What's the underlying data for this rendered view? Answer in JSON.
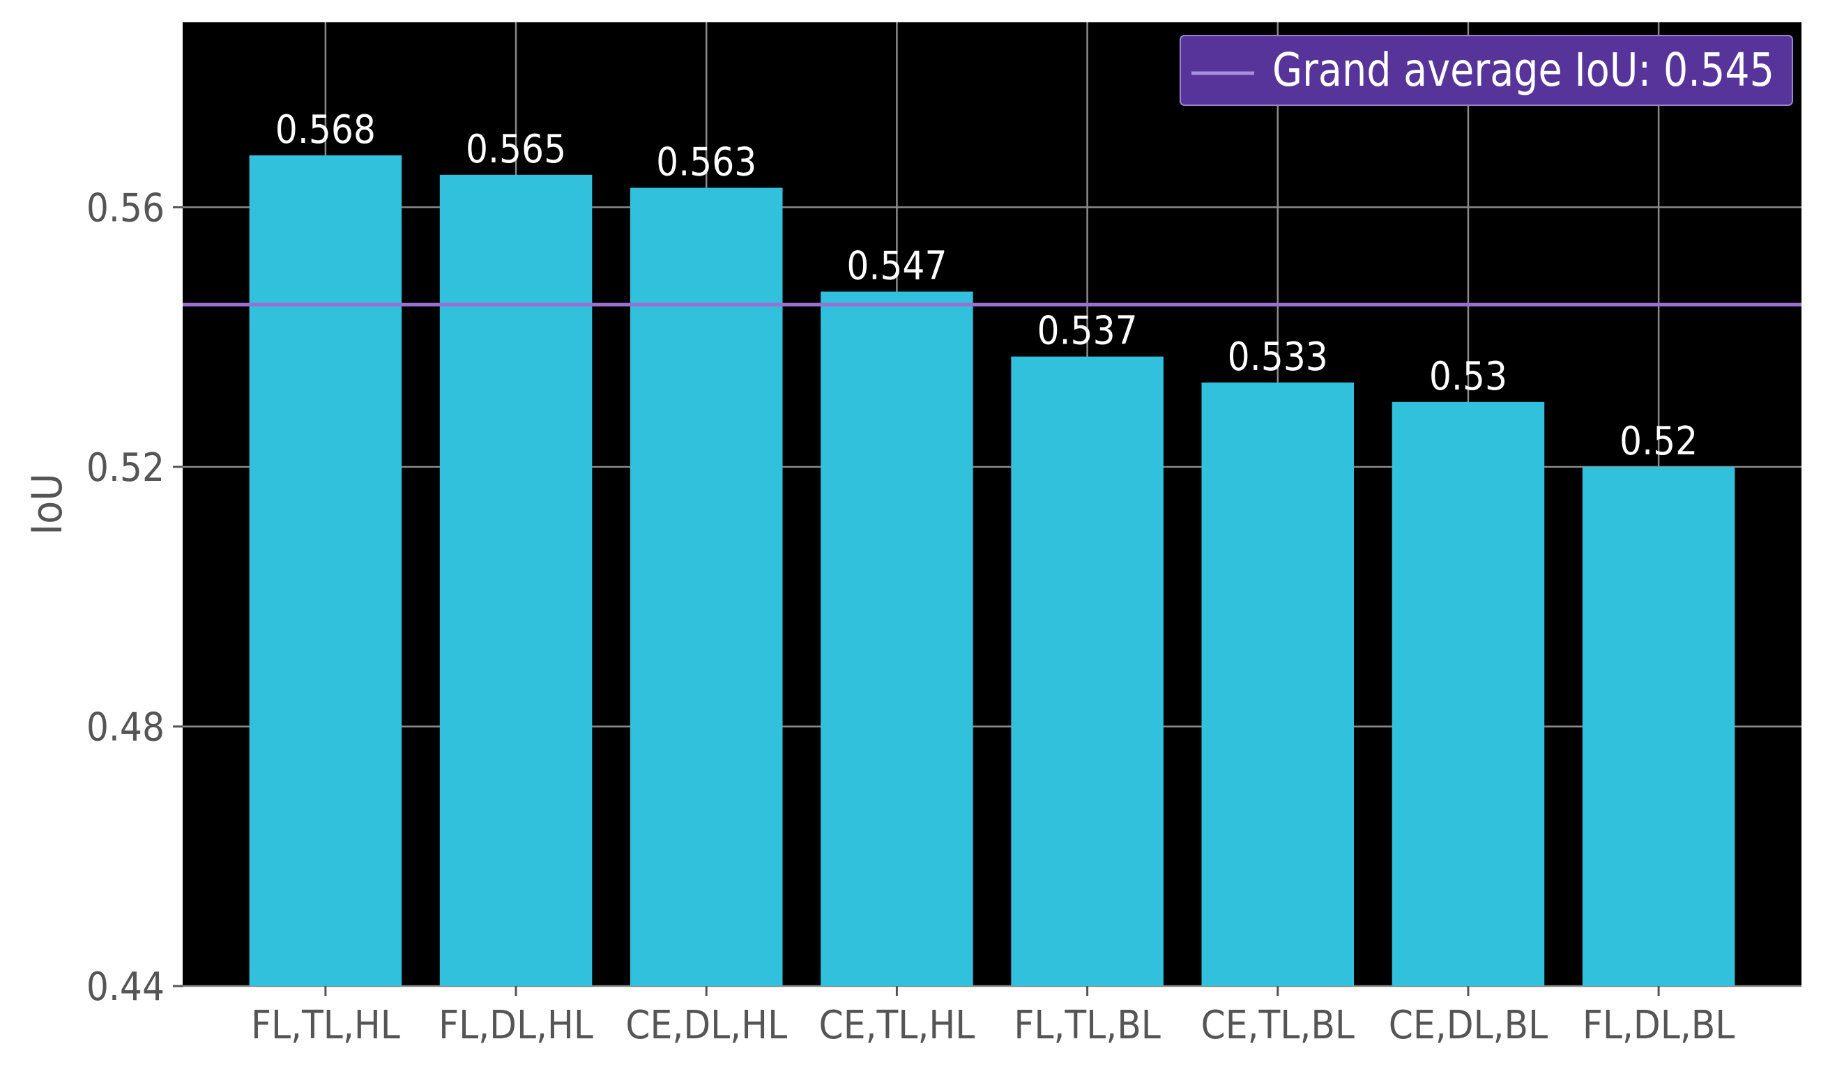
{
  "chart_data": {
    "type": "bar",
    "title": "",
    "xlabel": "",
    "ylabel": "IoU",
    "categories": [
      "FL,TL,HL",
      "FL,DL,HL",
      "CE,DL,HL",
      "CE,TL,HL",
      "FL,TL,BL",
      "CE,TL,BL",
      "CE,DL,BL",
      "FL,DL,BL"
    ],
    "values": [
      0.568,
      0.565,
      0.563,
      0.547,
      0.537,
      0.533,
      0.53,
      0.52
    ],
    "bar_labels": [
      "0.568",
      "0.565",
      "0.563",
      "0.547",
      "0.537",
      "0.533",
      "0.53",
      "0.52"
    ],
    "ylim": [
      0.44,
      0.5885
    ],
    "yticks": [
      0.44,
      0.48,
      0.52,
      0.56
    ],
    "ytick_labels": [
      "0.44",
      "0.48",
      "0.52",
      "0.56"
    ],
    "grid": true,
    "reference_line": {
      "value": 0.545,
      "label": "Grand average IoU: 0.545"
    },
    "legend_position": "top-right",
    "colors": {
      "bar": "#31c1dd",
      "plot_background": "#000000",
      "grid": "#8a8a8a",
      "reference_line": "#9a6fd0",
      "legend_background": "#56349a",
      "legend_border": "#9b86c9",
      "legend_line": "#a88ee0"
    }
  }
}
